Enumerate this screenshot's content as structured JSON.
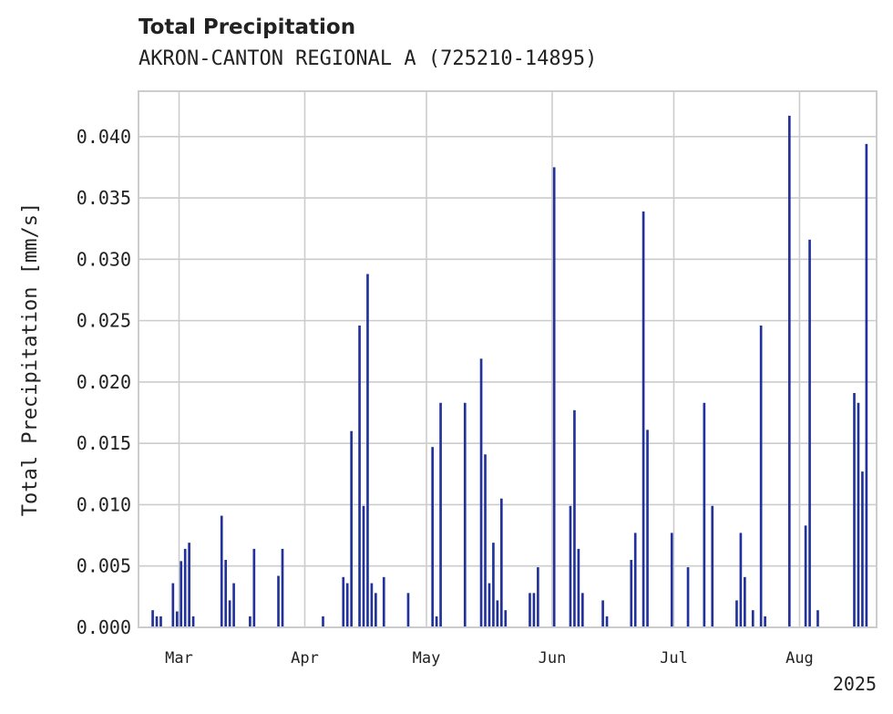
{
  "chart_data": {
    "type": "bar",
    "title": "Total Precipitation",
    "subtitle": "AKRON-CANTON REGIONAL A (725210-14895)",
    "xlabel": "",
    "ylabel": "Total Precipitation [mm/s]",
    "ylim": [
      0,
      0.0437
    ],
    "xlim": [
      "2025-02-19",
      "2025-08-20"
    ],
    "y_ticks": [
      "0.000",
      "0.005",
      "0.010",
      "0.015",
      "0.020",
      "0.025",
      "0.030",
      "0.035",
      "0.040"
    ],
    "x_ticks": [
      {
        "date": "2025-03-01",
        "label": "Mar"
      },
      {
        "date": "2025-04-01",
        "label": "Apr"
      },
      {
        "date": "2025-05-01",
        "label": "May"
      },
      {
        "date": "2025-06-01",
        "label": "Jun"
      },
      {
        "date": "2025-07-01",
        "label": "Jul"
      },
      {
        "date": "2025-08-01",
        "label": "Aug"
      }
    ],
    "x_offset_label": "2025",
    "grid": true,
    "bar_color": "#23329a",
    "x": [
      "2025-02-22",
      "2025-02-23",
      "2025-02-24",
      "2025-02-25",
      "2025-02-27",
      "2025-02-28",
      "2025-03-01",
      "2025-03-02",
      "2025-03-03",
      "2025-03-04",
      "2025-03-05",
      "2025-03-06",
      "2025-03-11",
      "2025-03-12",
      "2025-03-13",
      "2025-03-14",
      "2025-03-15",
      "2025-03-18",
      "2025-03-19",
      "2025-03-23",
      "2025-03-24",
      "2025-03-25",
      "2025-03-26",
      "2025-03-27",
      "2025-03-31",
      "2025-04-01",
      "2025-04-05",
      "2025-04-08",
      "2025-04-09",
      "2025-04-10",
      "2025-04-11",
      "2025-04-12",
      "2025-04-13",
      "2025-04-14",
      "2025-04-15",
      "2025-04-16",
      "2025-04-17",
      "2025-04-18",
      "2025-04-19",
      "2025-04-20",
      "2025-04-21",
      "2025-04-22",
      "2025-04-26",
      "2025-04-30",
      "2025-05-01",
      "2025-05-02",
      "2025-05-03",
      "2025-05-04",
      "2025-05-08",
      "2025-05-09",
      "2025-05-10",
      "2025-05-14",
      "2025-05-15",
      "2025-05-16",
      "2025-05-17",
      "2025-05-18",
      "2025-05-19",
      "2025-05-20",
      "2025-05-21",
      "2025-05-22",
      "2025-05-23",
      "2025-05-24",
      "2025-05-25",
      "2025-05-26",
      "2025-05-27",
      "2025-05-28",
      "2025-05-29",
      "2025-06-01",
      "2025-06-02",
      "2025-06-03",
      "2025-06-04",
      "2025-06-05",
      "2025-06-06",
      "2025-06-07",
      "2025-06-08",
      "2025-06-09",
      "2025-06-10",
      "2025-06-13",
      "2025-06-14",
      "2025-06-15",
      "2025-06-19",
      "2025-06-20",
      "2025-06-21",
      "2025-06-22",
      "2025-06-23",
      "2025-06-24",
      "2025-06-25",
      "2025-06-26",
      "2025-06-27",
      "2025-06-28",
      "2025-06-29",
      "2025-06-30",
      "2025-07-01",
      "2025-07-02",
      "2025-07-03",
      "2025-07-04",
      "2025-07-08",
      "2025-07-10",
      "2025-07-11",
      "2025-07-12",
      "2025-07-13",
      "2025-07-14",
      "2025-07-15",
      "2025-07-16",
      "2025-07-17",
      "2025-07-18",
      "2025-07-20",
      "2025-07-21",
      "2025-07-22",
      "2025-07-23",
      "2025-07-24",
      "2025-07-25",
      "2025-07-26",
      "2025-07-27",
      "2025-07-28",
      "2025-07-29",
      "2025-08-02",
      "2025-08-03",
      "2025-08-04",
      "2025-08-05",
      "2025-08-06",
      "2025-08-12",
      "2025-08-13",
      "2025-08-14",
      "2025-08-15",
      "2025-08-16",
      "2025-08-17"
    ],
    "values": [
      0.0014,
      0.0009,
      0.0009,
      0.0,
      0.0036,
      0.0013,
      0.0054,
      0.0064,
      0.0069,
      0.0009,
      0.0,
      0.0,
      0.0091,
      0.0055,
      0.0022,
      0.0036,
      0.0,
      0.0009,
      0.0064,
      0.0,
      0.0,
      0.0042,
      0.0064,
      0.0,
      0.0,
      0.0,
      0.0009,
      0.0,
      0.0,
      0.0041,
      0.0036,
      0.016,
      0.0,
      0.0246,
      0.0099,
      0.0288,
      0.0036,
      0.0028,
      0.0,
      0.0041,
      0.0,
      0.0,
      0.0028,
      0.0,
      0.0,
      0.0147,
      0.0009,
      0.0183,
      0.0,
      0.0,
      0.0183,
      0.0219,
      0.0141,
      0.0036,
      0.0069,
      0.0022,
      0.0105,
      0.0014,
      0.0,
      0.0,
      0.0,
      0.0,
      0.0,
      0.0028,
      0.0028,
      0.0049,
      0.0,
      0.0375,
      0.0,
      0.0,
      0.0,
      0.0099,
      0.0177,
      0.0064,
      0.0028,
      0.0,
      0.0,
      0.0022,
      0.0009,
      0.0,
      0.0,
      0.0055,
      0.0077,
      0.0,
      0.0339,
      0.0161,
      0.0,
      0.0,
      0.0,
      0.0,
      0.0,
      0.0077,
      0.0,
      0.0,
      0.0,
      0.0049,
      0.0183,
      0.0099,
      0.0,
      0.0,
      0.0,
      0.0,
      0.0,
      0.0022,
      0.0077,
      0.0041,
      0.0014,
      0.0,
      0.0246,
      0.0009,
      0.0,
      0.0,
      0.0,
      0.0,
      0.0,
      0.0417,
      0.0083,
      0.0316,
      0.0,
      0.0014,
      0.0,
      0.0,
      0.0,
      0.0191,
      0.0183,
      0.0127,
      0.0394
    ]
  }
}
